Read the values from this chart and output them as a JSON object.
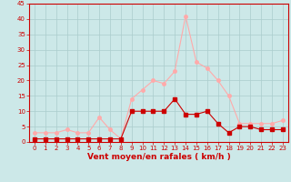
{
  "x": [
    0,
    1,
    2,
    3,
    4,
    5,
    6,
    7,
    8,
    9,
    10,
    11,
    12,
    13,
    14,
    15,
    16,
    17,
    18,
    19,
    20,
    21,
    22,
    23
  ],
  "wind_mean": [
    1,
    1,
    1,
    1,
    1,
    1,
    1,
    1,
    1,
    10,
    10,
    10,
    10,
    14,
    9,
    9,
    10,
    6,
    3,
    5,
    5,
    4,
    4,
    4
  ],
  "wind_gusts": [
    3,
    3,
    3,
    4,
    3,
    3,
    8,
    4,
    1,
    14,
    17,
    20,
    19,
    23,
    41,
    26,
    24,
    20,
    15,
    6,
    6,
    6,
    6,
    7
  ],
  "mean_color": "#cc0000",
  "gust_color": "#ffaaaa",
  "bg_color": "#cce8e8",
  "grid_color": "#aacccc",
  "axis_color": "#cc0000",
  "xlabel": "Vent moyen/en rafales ( km/h )",
  "ylim": [
    0,
    45
  ],
  "yticks": [
    0,
    5,
    10,
    15,
    20,
    25,
    30,
    35,
    40,
    45
  ],
  "xticks": [
    0,
    1,
    2,
    3,
    4,
    5,
    6,
    7,
    8,
    9,
    10,
    11,
    12,
    13,
    14,
    15,
    16,
    17,
    18,
    19,
    20,
    21,
    22,
    23
  ],
  "marker_size": 2.5,
  "line_width": 0.8,
  "tick_fontsize": 5.0,
  "xlabel_fontsize": 6.5
}
